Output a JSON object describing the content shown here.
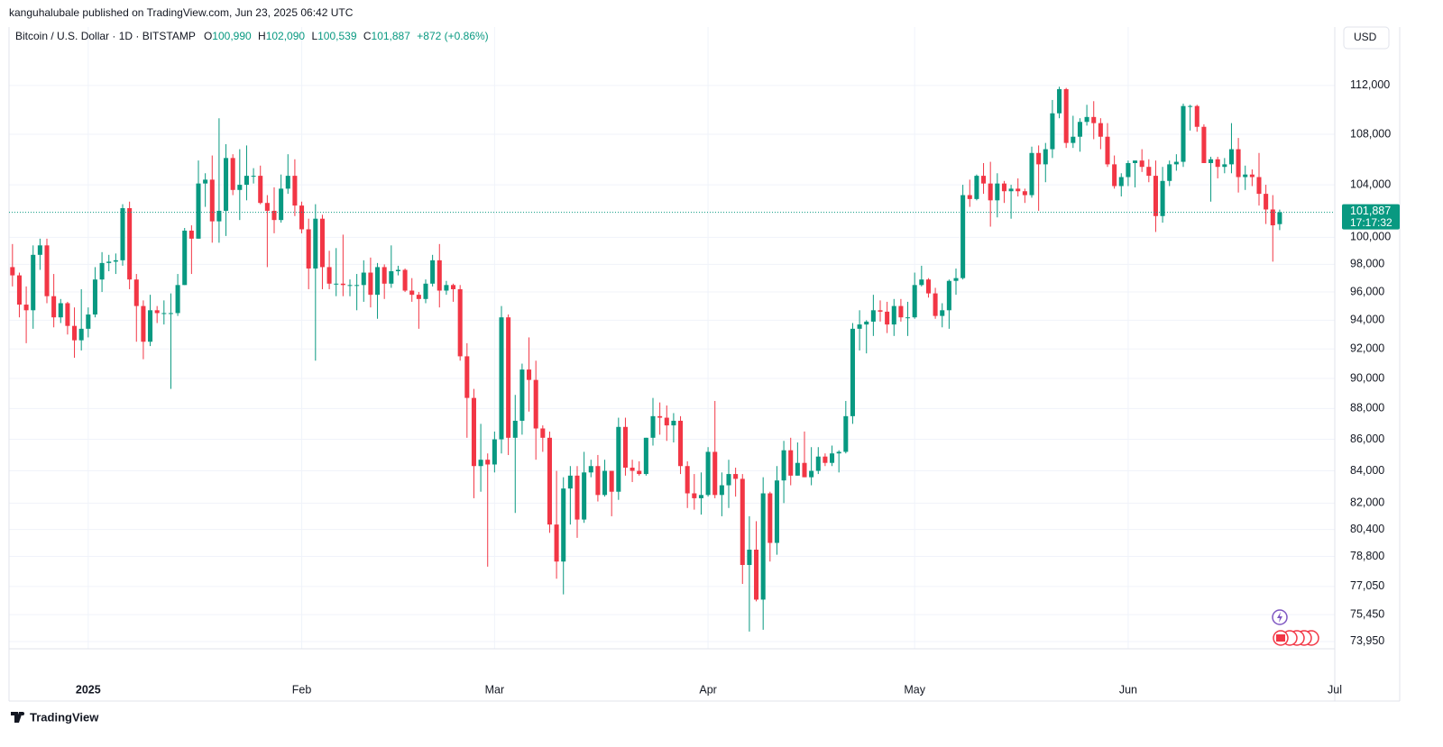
{
  "chart_data": {
    "type": "candlestick",
    "attribution": "kanguhalubale published on TradingView.com, Jun 23, 2025 06:42 UTC",
    "title": "Bitcoin / U.S. Dollar · 1D · BITSTAMP",
    "legend": {
      "open_label": "O",
      "open": "100,990",
      "high_label": "H",
      "high": "102,090",
      "low_label": "L",
      "low": "100,539",
      "close_label": "C",
      "close": "101,887",
      "change": "+872 (+0.86%)"
    },
    "currency": "USD",
    "last_price_label": "101,887",
    "countdown": "17:17:32",
    "brand": "TradingView",
    "up_color": "#089981",
    "down_color": "#f23645",
    "log_scale": true,
    "grid": true,
    "xlim": [
      -0.5,
      192
    ],
    "xticks": [
      {
        "value": 11,
        "label": "2025"
      },
      {
        "value": 42,
        "label": "Feb"
      },
      {
        "value": 70,
        "label": "Mar"
      },
      {
        "value": 101,
        "label": "Apr"
      },
      {
        "value": 131,
        "label": "May"
      },
      {
        "value": 162,
        "label": "Jun"
      },
      {
        "value": 192,
        "label": "Jul"
      }
    ],
    "ylim": [
      73550,
      117000
    ],
    "yticks": [
      {
        "value": 73950,
        "label": "73,950"
      },
      {
        "value": 75450,
        "label": "75,450"
      },
      {
        "value": 77050,
        "label": "77,050"
      },
      {
        "value": 78800,
        "label": "78,800"
      },
      {
        "value": 80400,
        "label": "80,400"
      },
      {
        "value": 82000,
        "label": "82,000"
      },
      {
        "value": 84000,
        "label": "84,000"
      },
      {
        "value": 86000,
        "label": "86,000"
      },
      {
        "value": 88000,
        "label": "88,000"
      },
      {
        "value": 90000,
        "label": "90,000"
      },
      {
        "value": 92000,
        "label": "92,000"
      },
      {
        "value": 94000,
        "label": "94,000"
      },
      {
        "value": 96000,
        "label": "96,000"
      },
      {
        "value": 98000,
        "label": "98,000"
      },
      {
        "value": 100000,
        "label": "100,000"
      },
      {
        "value": 104000,
        "label": "104,000"
      },
      {
        "value": 108000,
        "label": "108,000"
      },
      {
        "value": 112000,
        "label": "112,000"
      }
    ],
    "candles": [
      [
        97800,
        99500,
        96400,
        97200
      ],
      [
        97200,
        97400,
        94200,
        95100
      ],
      [
        95100,
        96400,
        92400,
        94700
      ],
      [
        94700,
        99400,
        93400,
        98700
      ],
      [
        98700,
        99900,
        97600,
        99400
      ],
      [
        99400,
        99900,
        95200,
        95700
      ],
      [
        95700,
        97300,
        93500,
        94200
      ],
      [
        94200,
        95500,
        93800,
        95200
      ],
      [
        95200,
        95300,
        93000,
        93600
      ],
      [
        93600,
        94900,
        91400,
        92600
      ],
      [
        92600,
        96200,
        91900,
        93400
      ],
      [
        93400,
        94900,
        92800,
        94400
      ],
      [
        94400,
        97800,
        94200,
        96900
      ],
      [
        96900,
        98900,
        96000,
        98100
      ],
      [
        98100,
        98700,
        97500,
        98200
      ],
      [
        98200,
        98800,
        97300,
        98300
      ],
      [
        98300,
        102500,
        97900,
        102200
      ],
      [
        102200,
        102700,
        96200,
        96900
      ],
      [
        96900,
        97300,
        92500,
        95000
      ],
      [
        95000,
        95400,
        91300,
        92500
      ],
      [
        92500,
        95800,
        92200,
        94700
      ],
      [
        94700,
        95000,
        93800,
        94500
      ],
      [
        94500,
        95400,
        93700,
        94500
      ],
      [
        94500,
        95900,
        89300,
        94500
      ],
      [
        94500,
        97300,
        94300,
        96500
      ],
      [
        96500,
        100700,
        96500,
        100500
      ],
      [
        100500,
        100900,
        97300,
        99900
      ],
      [
        99900,
        105900,
        99900,
        104100
      ],
      [
        104100,
        104900,
        102300,
        104400
      ],
      [
        104400,
        106300,
        99600,
        101200
      ],
      [
        101200,
        109300,
        99600,
        102000
      ],
      [
        102000,
        107200,
        100100,
        106100
      ],
      [
        106100,
        106400,
        103200,
        103600
      ],
      [
        103600,
        106800,
        101300,
        104000
      ],
      [
        104000,
        107100,
        102800,
        104700
      ],
      [
        104700,
        105300,
        104100,
        104700
      ],
      [
        104700,
        105500,
        102500,
        102600
      ],
      [
        102600,
        103200,
        97800,
        102000
      ],
      [
        102000,
        103800,
        100300,
        101300
      ],
      [
        101300,
        104800,
        101100,
        103700
      ],
      [
        103700,
        106400,
        103300,
        104700
      ],
      [
        104700,
        106000,
        101600,
        102400
      ],
      [
        102400,
        102700,
        100300,
        100600
      ],
      [
        100600,
        101400,
        96200,
        97700
      ],
      [
        97700,
        102500,
        91200,
        101400
      ],
      [
        101400,
        101700,
        96200,
        97800
      ],
      [
        97800,
        99000,
        96200,
        96600
      ],
      [
        96600,
        99200,
        95700,
        96600
      ],
      [
        96600,
        100200,
        95700,
        96500
      ],
      [
        96500,
        96900,
        95700,
        96500
      ],
      [
        96500,
        97300,
        94700,
        96500
      ],
      [
        96500,
        98300,
        95300,
        97400
      ],
      [
        97400,
        98500,
        94900,
        95800
      ],
      [
        95800,
        98100,
        94100,
        97800
      ],
      [
        97800,
        98000,
        95500,
        96600
      ],
      [
        96600,
        99400,
        96300,
        97500
      ],
      [
        97500,
        97900,
        97200,
        97600
      ],
      [
        97600,
        97700,
        96000,
        96100
      ],
      [
        96100,
        97000,
        95300,
        95800
      ],
      [
        95800,
        96000,
        93400,
        95500
      ],
      [
        95500,
        96900,
        95200,
        96600
      ],
      [
        96600,
        98700,
        96400,
        98300
      ],
      [
        98300,
        99500,
        94900,
        96100
      ],
      [
        96100,
        96800,
        95800,
        96500
      ],
      [
        96500,
        96600,
        95300,
        96200
      ],
      [
        96200,
        96500,
        91200,
        91500
      ],
      [
        91500,
        92400,
        86100,
        88700
      ],
      [
        88700,
        89300,
        82300,
        84300
      ],
      [
        84300,
        87000,
        82700,
        84700
      ],
      [
        84700,
        85100,
        78200,
        84400
      ],
      [
        84400,
        86500,
        83900,
        86000
      ],
      [
        86000,
        95000,
        85100,
        94200
      ],
      [
        94200,
        94400,
        85000,
        86100
      ],
      [
        86100,
        88900,
        81400,
        87200
      ],
      [
        87200,
        91000,
        86300,
        90600
      ],
      [
        90600,
        92800,
        87800,
        89900
      ],
      [
        89900,
        91200,
        84700,
        86700
      ],
      [
        86700,
        86900,
        85200,
        86100
      ],
      [
        86100,
        86500,
        80200,
        80700
      ],
      [
        80700,
        84000,
        77500,
        78500
      ],
      [
        78500,
        83600,
        76600,
        82900
      ],
      [
        82900,
        84300,
        80700,
        83700
      ],
      [
        83700,
        84300,
        79900,
        81000
      ],
      [
        81000,
        85200,
        80800,
        83900
      ],
      [
        83900,
        84700,
        83600,
        84300
      ],
      [
        84300,
        85000,
        82100,
        82500
      ],
      [
        82500,
        84700,
        82400,
        84000
      ],
      [
        84000,
        84000,
        81200,
        82700
      ],
      [
        82700,
        87400,
        82200,
        86800
      ],
      [
        86800,
        87400,
        83700,
        84200
      ],
      [
        84200,
        84700,
        83300,
        84000
      ],
      [
        84000,
        84600,
        83700,
        83800
      ],
      [
        83800,
        86100,
        83700,
        86100
      ],
      [
        86100,
        88700,
        85600,
        87500
      ],
      [
        87500,
        88400,
        86300,
        87400
      ],
      [
        87400,
        88200,
        85900,
        86900
      ],
      [
        86900,
        87700,
        85800,
        87200
      ],
      [
        87200,
        87500,
        83800,
        84300
      ],
      [
        84300,
        84600,
        81700,
        82600
      ],
      [
        82600,
        83800,
        81600,
        82300
      ],
      [
        82300,
        83900,
        81300,
        82500
      ],
      [
        82500,
        85500,
        82400,
        85200
      ],
      [
        85200,
        88500,
        82300,
        82500
      ],
      [
        82500,
        83900,
        81200,
        83100
      ],
      [
        83100,
        84700,
        81700,
        83800
      ],
      [
        83800,
        84200,
        82400,
        83500
      ],
      [
        83500,
        83800,
        77200,
        78300
      ],
      [
        78300,
        81200,
        74500,
        79200
      ],
      [
        79200,
        80900,
        76200,
        76300
      ],
      [
        76300,
        83600,
        74600,
        82600
      ],
      [
        82600,
        82700,
        78500,
        79600
      ],
      [
        79600,
        84300,
        78900,
        83400
      ],
      [
        83400,
        85900,
        82000,
        85300
      ],
      [
        85300,
        86100,
        83100,
        83700
      ],
      [
        83700,
        85800,
        83700,
        84500
      ],
      [
        84500,
        86500,
        83600,
        83600
      ],
      [
        83600,
        85500,
        83100,
        84000
      ],
      [
        84000,
        85500,
        83800,
        84900
      ],
      [
        84900,
        85100,
        84300,
        84500
      ],
      [
        84500,
        85600,
        84300,
        85100
      ],
      [
        85100,
        85300,
        83900,
        85200
      ],
      [
        85200,
        88500,
        85100,
        87500
      ],
      [
        87500,
        93800,
        87000,
        93400
      ],
      [
        93400,
        94700,
        91900,
        93700
      ],
      [
        93700,
        94000,
        91700,
        93900
      ],
      [
        93900,
        95800,
        92900,
        94700
      ],
      [
        94700,
        95400,
        93900,
        94600
      ],
      [
        94600,
        95300,
        93100,
        93700
      ],
      [
        93700,
        95500,
        92900,
        95000
      ],
      [
        95000,
        95500,
        93900,
        94200
      ],
      [
        94200,
        95300,
        92900,
        94200
      ],
      [
        94200,
        97400,
        94100,
        96500
      ],
      [
        96500,
        97900,
        96400,
        96900
      ],
      [
        96900,
        97000,
        95600,
        95900
      ],
      [
        95900,
        96300,
        94100,
        94300
      ],
      [
        94300,
        95200,
        93500,
        94700
      ],
      [
        94700,
        96900,
        93400,
        96800
      ],
      [
        96800,
        97700,
        95800,
        97000
      ],
      [
        97000,
        104000,
        96900,
        103200
      ],
      [
        103200,
        104400,
        102300,
        102900
      ],
      [
        102900,
        104800,
        102800,
        104700
      ],
      [
        104700,
        105700,
        103300,
        104100
      ],
      [
        104100,
        105800,
        100800,
        102800
      ],
      [
        102800,
        104900,
        101500,
        104100
      ],
      [
        104100,
        104300,
        102600,
        103500
      ],
      [
        103500,
        104000,
        101400,
        103700
      ],
      [
        103700,
        104500,
        103100,
        103500
      ],
      [
        103500,
        103700,
        102600,
        103200
      ],
      [
        103200,
        107000,
        103000,
        106500
      ],
      [
        106500,
        107100,
        102000,
        105600
      ],
      [
        105600,
        107300,
        104200,
        106800
      ],
      [
        106800,
        110800,
        106100,
        109700
      ],
      [
        109700,
        111900,
        109300,
        111700
      ],
      [
        111700,
        111800,
        106900,
        107300
      ],
      [
        107300,
        109500,
        106900,
        107800
      ],
      [
        107800,
        109300,
        106600,
        109000
      ],
      [
        109000,
        110400,
        108700,
        109400
      ],
      [
        109400,
        110700,
        107600,
        108900
      ],
      [
        108900,
        109300,
        106800,
        107800
      ],
      [
        107800,
        108900,
        105400,
        105600
      ],
      [
        105600,
        106300,
        103700,
        103900
      ],
      [
        103900,
        104900,
        103100,
        104600
      ],
      [
        104600,
        105900,
        103900,
        105700
      ],
      [
        105700,
        105900,
        103800,
        105900
      ],
      [
        105900,
        106800,
        105000,
        105400
      ],
      [
        105400,
        106000,
        104200,
        104700
      ],
      [
        104700,
        105900,
        100400,
        101600
      ],
      [
        101600,
        105400,
        101100,
        104300
      ],
      [
        104300,
        105900,
        103900,
        105600
      ],
      [
        105600,
        106400,
        105100,
        105800
      ],
      [
        105800,
        110500,
        105400,
        110300
      ],
      [
        110300,
        110400,
        108300,
        110300
      ],
      [
        110300,
        110400,
        108200,
        108600
      ],
      [
        108600,
        108800,
        105700,
        105700
      ],
      [
        105700,
        106200,
        102700,
        106000
      ],
      [
        106000,
        106200,
        104500,
        105400
      ],
      [
        105400,
        106100,
        104900,
        105600
      ],
      [
        105600,
        108900,
        104900,
        106800
      ],
      [
        106800,
        107700,
        103400,
        104600
      ],
      [
        104600,
        105500,
        103600,
        104800
      ],
      [
        104800,
        105200,
        103900,
        104600
      ],
      [
        104600,
        106500,
        102400,
        103300
      ],
      [
        103300,
        104000,
        101000,
        102100
      ],
      [
        102100,
        103200,
        98200,
        100900
      ],
      [
        100990,
        102090,
        100539,
        101887
      ]
    ]
  }
}
